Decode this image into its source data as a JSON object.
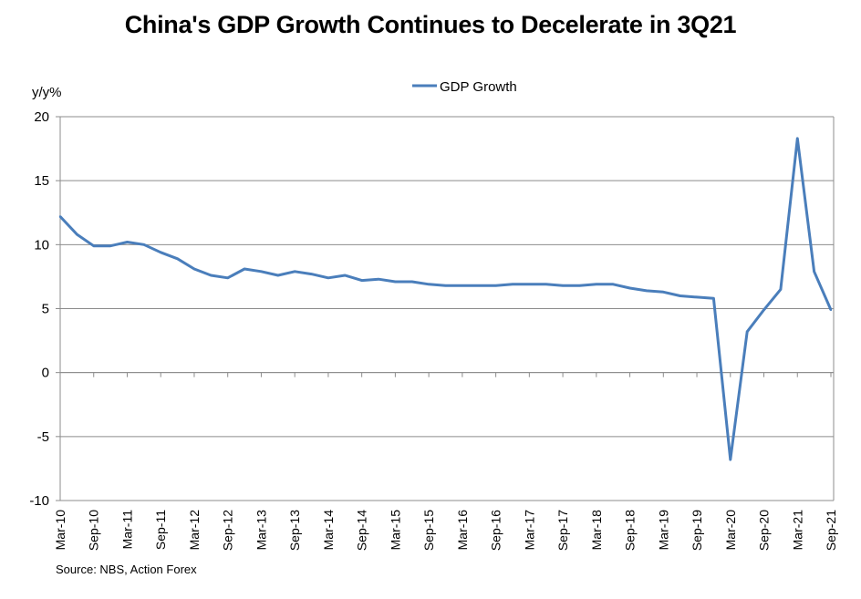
{
  "chart_data": {
    "type": "line",
    "title": "China's GDP Growth Continues to Decelerate in 3Q21",
    "ylabel": "y/y%",
    "ylim": [
      -10,
      20
    ],
    "yticks": [
      "20",
      "15",
      "10",
      "5",
      "0",
      "-5",
      "-10"
    ],
    "ytick_values": [
      20,
      15,
      10,
      5,
      0,
      -5,
      -10
    ],
    "grid": true,
    "legend_position": "top-center",
    "x": [
      "Mar-10",
      "Jun-10",
      "Sep-10",
      "Dec-10",
      "Mar-11",
      "Jun-11",
      "Sep-11",
      "Dec-11",
      "Mar-12",
      "Jun-12",
      "Sep-12",
      "Dec-12",
      "Mar-13",
      "Jun-13",
      "Sep-13",
      "Dec-13",
      "Mar-14",
      "Jun-14",
      "Sep-14",
      "Dec-14",
      "Mar-15",
      "Jun-15",
      "Sep-15",
      "Dec-15",
      "Mar-16",
      "Jun-16",
      "Sep-16",
      "Dec-16",
      "Mar-17",
      "Jun-17",
      "Sep-17",
      "Dec-17",
      "Mar-18",
      "Jun-18",
      "Sep-18",
      "Dec-18",
      "Mar-19",
      "Jun-19",
      "Sep-19",
      "Dec-19",
      "Mar-20",
      "Jun-20",
      "Sep-20",
      "Dec-20",
      "Mar-21",
      "Jun-21",
      "Sep-21"
    ],
    "xtick_labels": [
      "Mar-10",
      "Sep-10",
      "Mar-11",
      "Sep-11",
      "Mar-12",
      "Sep-12",
      "Mar-13",
      "Sep-13",
      "Mar-14",
      "Sep-14",
      "Mar-15",
      "Sep-15",
      "Mar-16",
      "Sep-16",
      "Mar-17",
      "Sep-17",
      "Mar-18",
      "Sep-18",
      "Mar-19",
      "Sep-19",
      "Mar-20",
      "Sep-20",
      "Mar-21",
      "Sep-21"
    ],
    "series": [
      {
        "name": "GDP Growth",
        "color": "#4a7ebb",
        "values": [
          12.2,
          10.8,
          9.9,
          9.9,
          10.2,
          10.0,
          9.4,
          8.9,
          8.1,
          7.6,
          7.4,
          8.1,
          7.9,
          7.6,
          7.9,
          7.7,
          7.4,
          7.6,
          7.2,
          7.3,
          7.1,
          7.1,
          6.9,
          6.8,
          6.8,
          6.8,
          6.8,
          6.9,
          6.9,
          6.9,
          6.8,
          6.8,
          6.9,
          6.9,
          6.6,
          6.4,
          6.3,
          6.0,
          5.9,
          5.8,
          -6.8,
          3.2,
          4.9,
          6.5,
          18.3,
          7.9,
          4.9
        ]
      }
    ]
  },
  "source_note": "Source: NBS, Action Forex"
}
